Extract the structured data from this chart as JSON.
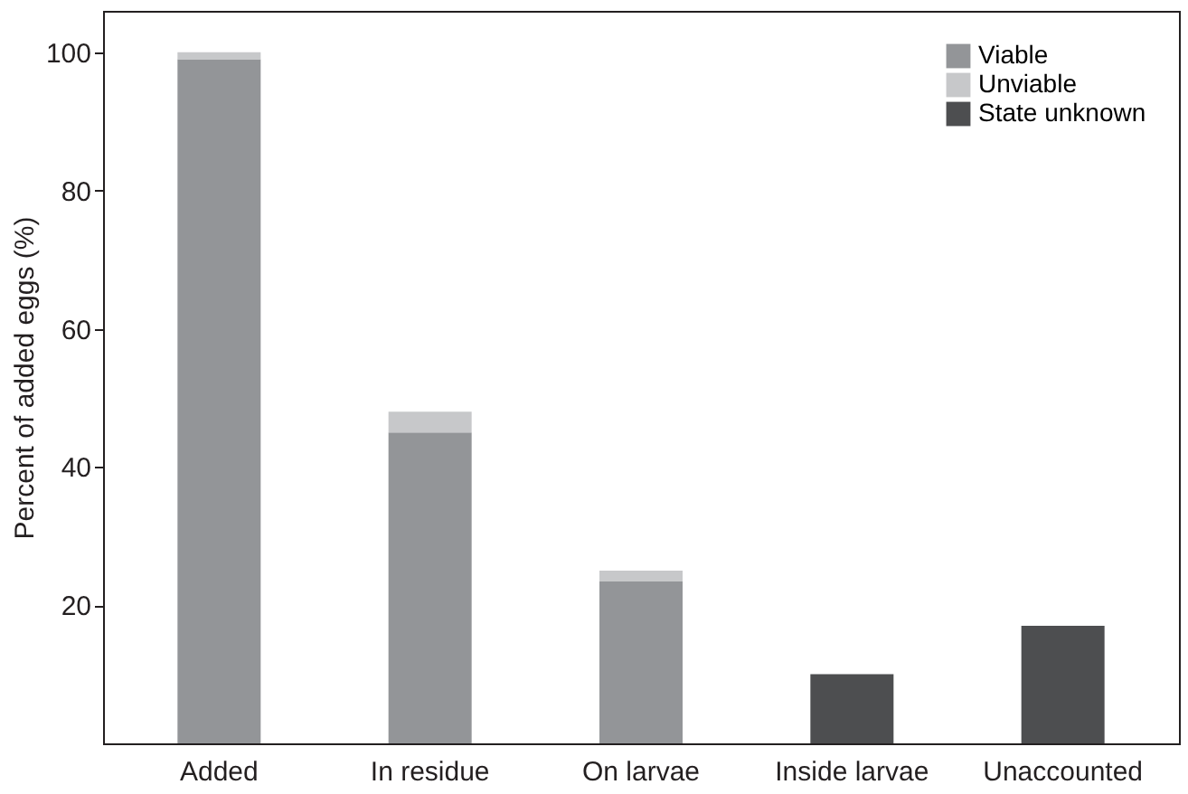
{
  "chart_data": {
    "type": "bar",
    "stacked": true,
    "ylabel": "Percent of added eggs (%)",
    "categories": [
      "Added",
      "In residue",
      "On larvae",
      "Inside larvae",
      "Unaccounted"
    ],
    "series": [
      {
        "name": "Viable",
        "color": "#939598",
        "values": [
          99,
          45,
          23.5,
          null,
          null
        ]
      },
      {
        "name": "Unviable",
        "color": "#c7c8ca",
        "values": [
          1,
          3,
          1.5,
          null,
          null
        ]
      },
      {
        "name": "State unknown",
        "color": "#4d4e50",
        "values": [
          null,
          null,
          null,
          10,
          17
        ]
      }
    ],
    "ylim": [
      0,
      106
    ],
    "yticks": [
      20,
      40,
      60,
      80,
      100
    ],
    "grid": false,
    "legend": "top right"
  }
}
